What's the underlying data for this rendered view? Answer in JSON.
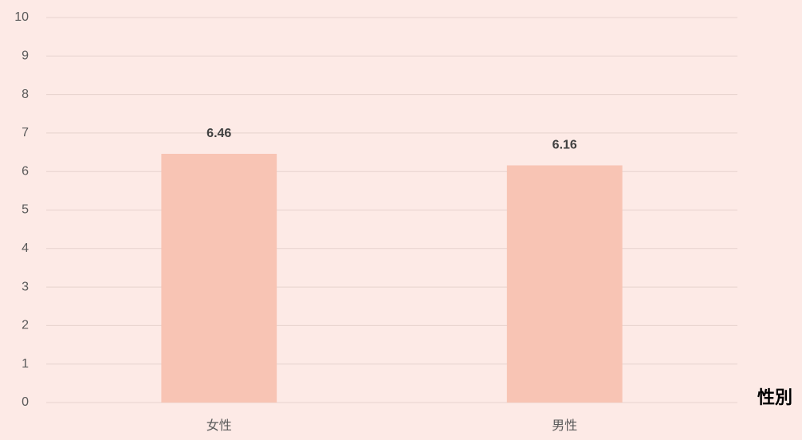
{
  "chart_data": {
    "type": "bar",
    "categories": [
      "女性",
      "男性"
    ],
    "values": [
      6.46,
      6.16
    ],
    "color": "#f8c4b4",
    "x_label": "性別",
    "ylim": [
      0,
      10
    ],
    "yticks": [
      0,
      1,
      2,
      3,
      4,
      5,
      6,
      7,
      8,
      9,
      10
    ],
    "grid": true
  }
}
